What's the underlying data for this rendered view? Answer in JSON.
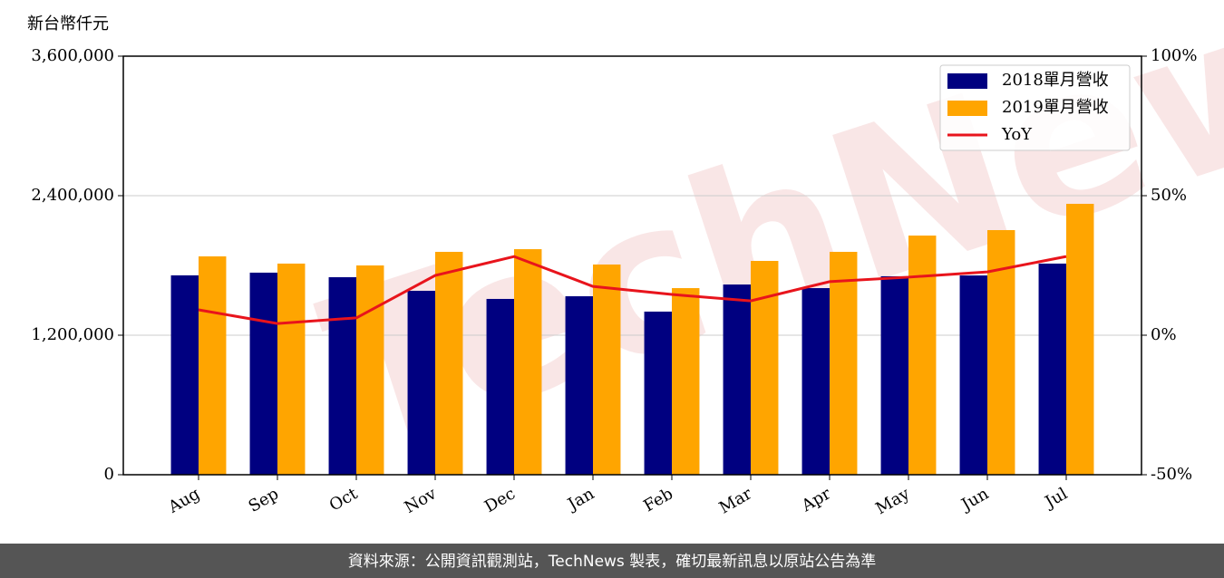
{
  "chart_data": {
    "type": "bar_line",
    "y_label": "新台幣仟元",
    "categories": [
      "Aug",
      "Sep",
      "Oct",
      "Nov",
      "Dec",
      "Jan",
      "Feb",
      "Mar",
      "Apr",
      "May",
      "Jun",
      "Jul"
    ],
    "series": [
      {
        "name": "2018單月營收",
        "color": "#000080",
        "type": "bar",
        "values": [
          1715000,
          1738000,
          1699000,
          1582000,
          1512000,
          1535000,
          1403000,
          1636000,
          1605000,
          1707000,
          1714000,
          1816000
        ]
      },
      {
        "name": "2019單月營收",
        "color": "#ffa500",
        "type": "bar",
        "values": [
          1878000,
          1816000,
          1800000,
          1917000,
          1940000,
          1808000,
          1605000,
          1839000,
          1917000,
          2057000,
          2104000,
          2330000
        ]
      },
      {
        "name": "YoY",
        "color": "#e8141c",
        "type": "line",
        "axis": "y2",
        "values": [
          9.1,
          4.2,
          6.2,
          21.4,
          28.2,
          17.5,
          14.6,
          12.3,
          19.2,
          20.8,
          22.7,
          28.2
        ]
      }
    ],
    "ylim": [
      0,
      3600000
    ],
    "yticks": [
      0,
      {
        "value": 1200000,
        "label": "1,200,000"
      },
      {
        "value": 2400000,
        "label": "2,400,000"
      },
      {
        "value": 3600000,
        "label": "3,600,000"
      }
    ],
    "y2lim": [
      -50,
      100
    ],
    "y2ticks": [
      {
        "value": -50,
        "label": "-50%"
      },
      {
        "value": 0,
        "label": "0%"
      },
      {
        "value": 50,
        "label": "50%"
      },
      {
        "value": 100,
        "label": "100%"
      }
    ],
    "grid": true,
    "legend": "upper right",
    "watermark": "TechNews",
    "footer": "資料來源：公開資訊觀測站，TechNews 製表，確切最新訊息以原站公告為準"
  }
}
